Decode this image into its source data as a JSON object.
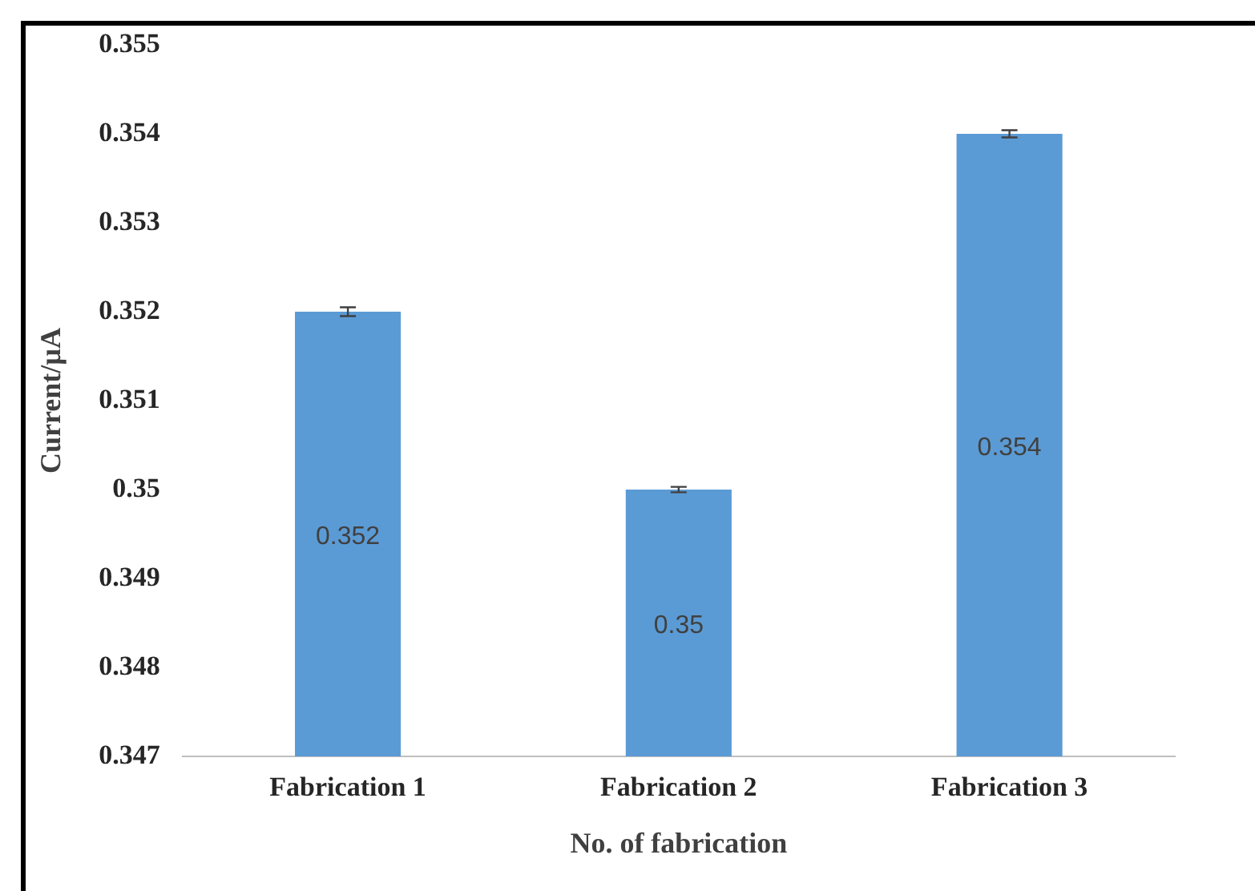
{
  "chart_data": {
    "type": "bar",
    "xlabel": "No. of fabrication",
    "ylabel": "Current/µA",
    "categories": [
      "Fabrication 1",
      "Fabrication 2",
      "Fabrication 3"
    ],
    "values": [
      0.352,
      0.35,
      0.354
    ],
    "errors": [
      5e-05,
      3e-05,
      4e-05
    ],
    "color": "#5b9bd5",
    "ylim": [
      0.347,
      0.355
    ],
    "yticks": [
      0.347,
      0.348,
      0.349,
      0.35,
      0.351,
      0.352,
      0.353,
      0.354,
      0.355
    ],
    "data_labels": true,
    "grid": false,
    "legend": false
  }
}
